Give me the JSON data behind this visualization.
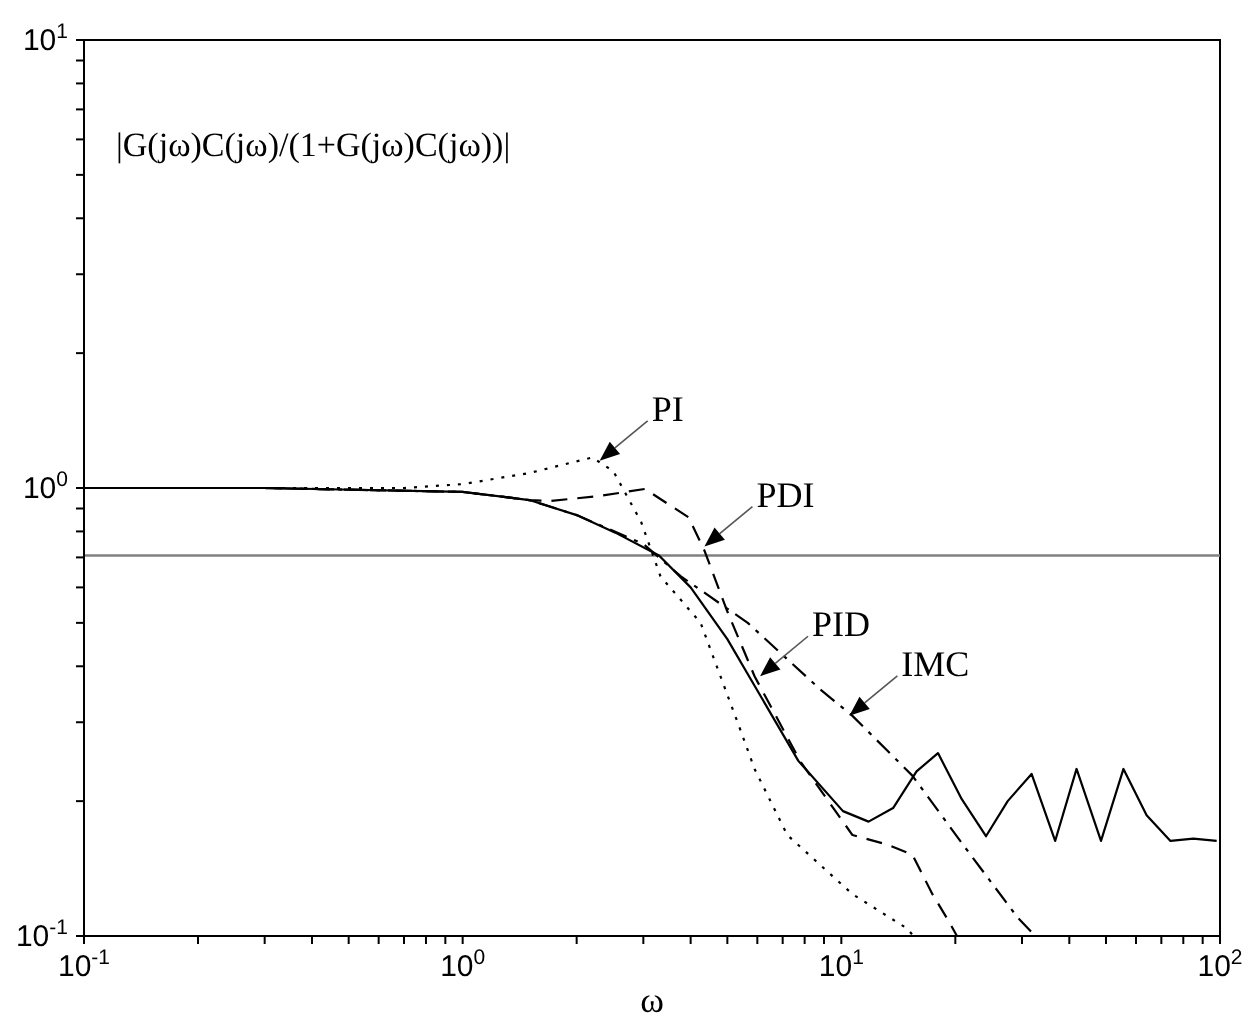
{
  "chart_data": {
    "type": "line",
    "xlabel": "ω",
    "annotations": [
      "|G(jω)C(jω)/(1+G(jω)C(jω))|",
      {
        "text": "PI",
        "x": 2.3,
        "y": 1.15
      },
      {
        "text": "PDI",
        "x": 4.35,
        "y": 0.74
      },
      {
        "text": "IMC",
        "x": 10.5,
        "y": 0.31
      },
      {
        "text": "PID",
        "x": 6.1,
        "y": 0.38
      }
    ],
    "log": "xy",
    "grid": false,
    "legend": false,
    "marker": "none",
    "xlim": [
      0.1,
      100
    ],
    "ylim": [
      0.1,
      10
    ],
    "xticks": [
      {
        "value": 0.1,
        "label": "10$^{-1}$"
      },
      {
        "value": 0.2,
        "label": null
      },
      {
        "value": 0.3,
        "label": null
      },
      {
        "value": 0.4,
        "label": null
      },
      {
        "value": 0.5,
        "label": null
      },
      {
        "value": 0.6,
        "label": null
      },
      {
        "value": 0.7,
        "label": null
      },
      {
        "value": 0.8,
        "label": null
      },
      {
        "value": 0.9,
        "label": null
      },
      {
        "value": 1,
        "label": "10$^{0}$"
      },
      {
        "value": 2,
        "label": null
      },
      {
        "value": 3,
        "label": null
      },
      {
        "value": 4,
        "label": null
      },
      {
        "value": 5,
        "label": null
      },
      {
        "value": 6,
        "label": null
      },
      {
        "value": 7,
        "label": null
      },
      {
        "value": 8,
        "label": null
      },
      {
        "value": 9,
        "label": null
      },
      {
        "value": 10,
        "label": "10$^{1}$"
      },
      {
        "value": 20,
        "label": null
      },
      {
        "value": 30,
        "label": null
      },
      {
        "value": 40,
        "label": null
      },
      {
        "value": 50,
        "label": null
      },
      {
        "value": 60,
        "label": null
      },
      {
        "value": 70,
        "label": null
      },
      {
        "value": 80,
        "label": null
      },
      {
        "value": 90,
        "label": null
      },
      {
        "value": 100,
        "label": "10$^{2}$"
      }
    ],
    "yticks": [
      {
        "value": 0.1,
        "label": "10$^{-1}$"
      },
      {
        "value": 0.2,
        "label": null
      },
      {
        "value": 0.3,
        "label": null
      },
      {
        "value": 0.4,
        "label": null
      },
      {
        "value": 0.5,
        "label": null
      },
      {
        "value": 0.6,
        "label": null
      },
      {
        "value": 0.7,
        "label": null
      },
      {
        "value": 0.8,
        "label": null
      },
      {
        "value": 0.9,
        "label": null
      },
      {
        "value": 1,
        "label": "10$^{0}$"
      },
      {
        "value": 2,
        "label": null
      },
      {
        "value": 3,
        "label": null
      },
      {
        "value": 4,
        "label": null
      },
      {
        "value": 5,
        "label": null
      },
      {
        "value": 6,
        "label": null
      },
      {
        "value": 7,
        "label": null
      },
      {
        "value": 8,
        "label": null
      },
      {
        "value": 9,
        "label": null
      },
      {
        "value": 10,
        "label": "10$^{1}$"
      }
    ],
    "ref_lines": [
      {
        "axis": "y",
        "value": 0.707,
        "color": "#808080"
      }
    ],
    "series": [
      {
        "color": "#000000",
        "line_style": "solid",
        "x": [
          0.1,
          0.3,
          1,
          1.5,
          2,
          2.53,
          3.3,
          4,
          5,
          5.9,
          7.7,
          10.1,
          11.8,
          13.7,
          15.8,
          18,
          20.8,
          24.1,
          27.5,
          31.8,
          36.7,
          41.8,
          48.5,
          55.6,
          64,
          74,
          85,
          98
        ],
        "values": [
          1,
          1,
          0.98,
          0.94,
          0.87,
          0.795,
          0.707,
          0.6,
          0.46,
          0.362,
          0.246,
          0.19,
          0.18,
          0.193,
          0.233,
          0.256,
          0.202,
          0.167,
          0.2,
          0.23,
          0.163,
          0.236,
          0.163,
          0.236,
          0.186,
          0.163,
          0.165,
          0.163
        ]
      },
      {
        "color": "#000000",
        "line_style": "dotted",
        "x": [
          0.1,
          0.3,
          0.7,
          1,
          1.5,
          2.2,
          2.5,
          2.96,
          3.33,
          4.25,
          5.4,
          5.9,
          7.2,
          10.7,
          14.9,
          15.5
        ],
        "values": [
          1,
          1,
          1,
          1.02,
          1.08,
          1.17,
          1.09,
          0.84,
          0.635,
          0.5,
          0.29,
          0.236,
          0.168,
          0.124,
          0.104,
          0.1
        ]
      },
      {
        "color": "#000000",
        "line_style": "dashed",
        "x": [
          0.1,
          0.3,
          1,
          1.5,
          1.7,
          2.3,
          3.03,
          3.95,
          4.35,
          5,
          5.9,
          7.8,
          10.7,
          13.2,
          15.4,
          17.4,
          19.2,
          20.2
        ],
        "values": [
          1,
          1,
          0.98,
          0.94,
          0.935,
          0.96,
          0.995,
          0.86,
          0.725,
          0.53,
          0.38,
          0.245,
          0.168,
          0.16,
          0.152,
          0.124,
          0.108,
          0.1
        ]
      },
      {
        "color": "#000000",
        "line_style": "dashdot",
        "x": [
          0.1,
          0.3,
          1,
          1.5,
          2,
          3,
          3.77,
          5.66,
          8.8,
          10.7,
          15.4,
          21.3,
          29.2,
          32.5
        ],
        "values": [
          1,
          1,
          0.98,
          0.94,
          0.87,
          0.75,
          0.635,
          0.5,
          0.355,
          0.31,
          0.228,
          0.157,
          0.11,
          0.1
        ]
      }
    ]
  }
}
